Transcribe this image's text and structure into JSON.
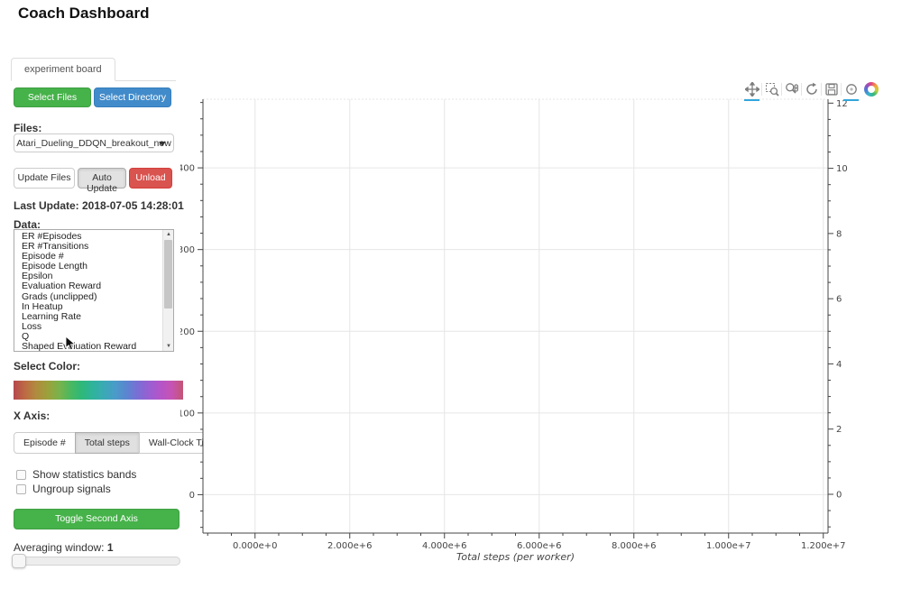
{
  "page": {
    "title": "Coach Dashboard"
  },
  "tabs": [
    {
      "label": "experiment board",
      "active": true
    }
  ],
  "file_controls": {
    "select_files_label": "Select Files",
    "select_directory_label": "Select Directory",
    "files_label": "Files:",
    "selected_file": "Atari_Dueling_DDQN_breakout_new",
    "update_files_label": "Update Files",
    "auto_update_label": "Auto Update",
    "unload_label": "Unload",
    "last_update": "Last Update: 2018-07-05 14:28:01"
  },
  "data_panel": {
    "label": "Data:",
    "signals": [
      "ER #Episodes",
      "ER #Transitions",
      "Episode #",
      "Episode Length",
      "Epsilon",
      "Evaluation Reward",
      "Grads (unclipped)",
      "In Heatup",
      "Learning Rate",
      "Loss",
      "Q",
      "Shaped Evaluation Reward"
    ]
  },
  "color_panel": {
    "label": "Select Color:",
    "palette": [
      "#b5484d",
      "#bd6a44",
      "#b08b3e",
      "#9da03c",
      "#7bb24a",
      "#4cb85f",
      "#2eb878",
      "#2fb39b",
      "#3aaab5",
      "#4a9bc9",
      "#5b85d0",
      "#7a6ed4",
      "#9a5fd2",
      "#b455c8",
      "#c653b3",
      "#c35573"
    ]
  },
  "x_axis_panel": {
    "label": "X Axis:",
    "options": [
      {
        "label": "Episode #",
        "active": false
      },
      {
        "label": "Total steps",
        "active": true
      },
      {
        "label": "Wall-Clock Time",
        "active": false
      }
    ]
  },
  "options_panel": {
    "show_statistics_bands": {
      "label": "Show statistics bands",
      "checked": false
    },
    "ungroup_signals": {
      "label": "Ungroup signals",
      "checked": false
    }
  },
  "toggle_second_axis_label": "Toggle Second Axis",
  "averaging": {
    "label": "Averaging window:",
    "value": "1"
  },
  "plot_toolbar": {
    "active_color": "#31a6dc",
    "tools": [
      {
        "name": "pan",
        "active": true
      },
      {
        "name": "box-zoom",
        "active": false
      },
      {
        "name": "wheel-zoom",
        "active": false
      },
      {
        "name": "reset",
        "active": false
      },
      {
        "name": "save",
        "active": false
      },
      {
        "name": "hover",
        "active": true
      }
    ]
  },
  "chart_data": {
    "type": "line",
    "title": "",
    "xlabel": "Total steps (per worker)",
    "ylabel": "",
    "series": [],
    "grid": true,
    "legend": null,
    "xlim": [
      -1100000,
      12100000
    ],
    "x_ticks": {
      "values": [
        0,
        2000000,
        4000000,
        6000000,
        8000000,
        10000000,
        12000000
      ],
      "labels": [
        "0.000e+0",
        "2.000e+6",
        "4.000e+6",
        "6.000e+6",
        "8.000e+6",
        "1.000e+7",
        "1.200e+7"
      ],
      "minor_step": 500000
    },
    "y_left": {
      "lim": [
        -47,
        484
      ],
      "ticks": [
        0,
        100,
        200,
        300,
        400
      ],
      "labels": [
        "0",
        "100",
        "200",
        "300",
        "400"
      ],
      "minor_step": 20
    },
    "y_right": {
      "lim": [
        -1.19,
        12.12
      ],
      "ticks": [
        0,
        2,
        4,
        6,
        8,
        10,
        12
      ],
      "labels": [
        "0",
        "2",
        "4",
        "6",
        "8",
        "10",
        "12"
      ],
      "minor_step": 0.5
    }
  }
}
